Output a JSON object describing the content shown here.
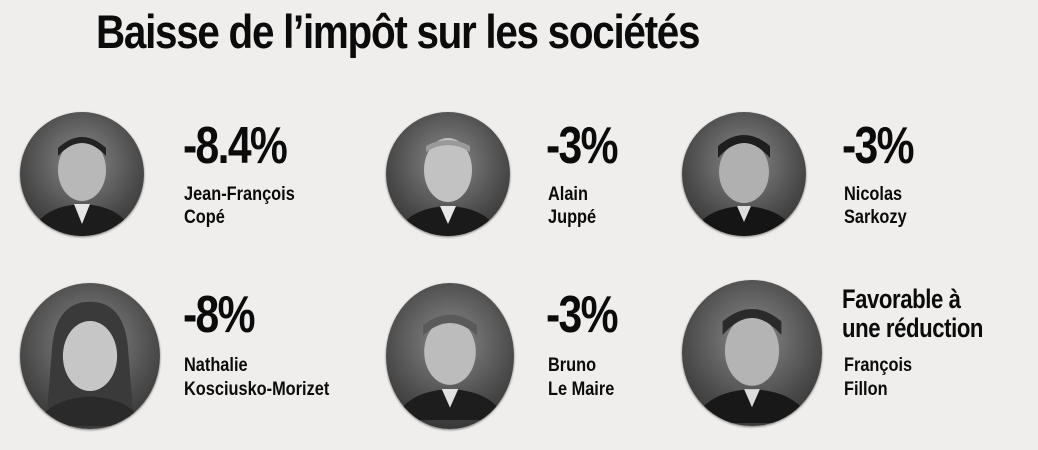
{
  "title": "Baisse de l’impôt sur les sociétés",
  "candidates": [
    {
      "value": "-8.4%",
      "first": "Jean-François",
      "last": "Copé"
    },
    {
      "value": "-3%",
      "first": "Alain",
      "last": "Juppé"
    },
    {
      "value": "-3%",
      "first": "Nicolas",
      "last": "Sarkozy"
    },
    {
      "value": "-8%",
      "first": "Nathalie",
      "last": "Kosciusko-Morizet"
    },
    {
      "value": "-3%",
      "first": "Bruno",
      "last": "Le Maire"
    },
    {
      "value_line1": "Favorable à",
      "value_line2": "une réduction",
      "first": "François",
      "last": "Fillon"
    }
  ],
  "colors": {
    "background": "#efeeec",
    "text": "#0b0b0b"
  }
}
